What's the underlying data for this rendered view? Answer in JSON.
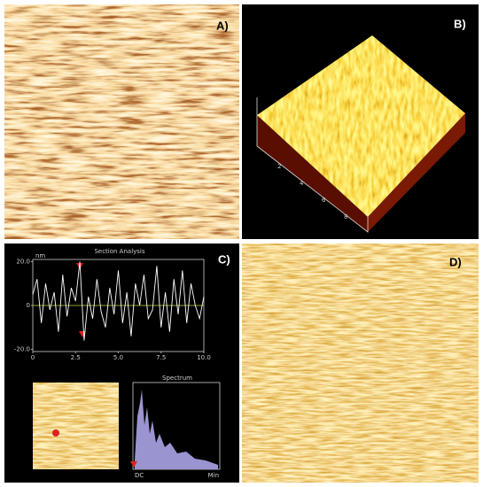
{
  "panels": {
    "a_label": "A)",
    "b_label": "B)",
    "c_label": "C)",
    "d_label": "D)",
    "b_axis_ticks": [
      "2",
      "4",
      "6",
      "8"
    ],
    "spectrum": {
      "title": "Spectrum",
      "left_label": "DC",
      "right_label": "Min"
    }
  },
  "chart_data": {
    "type": "line",
    "title": "Section Analysis",
    "y_label": "nm",
    "x": [
      0,
      0.25,
      0.5,
      0.75,
      1,
      1.25,
      1.5,
      1.75,
      2,
      2.25,
      2.5,
      2.75,
      3,
      3.25,
      3.5,
      3.75,
      4,
      4.25,
      4.5,
      4.75,
      5,
      5.25,
      5.5,
      5.75,
      6,
      6.25,
      6.5,
      6.75,
      7,
      7.25,
      7.5,
      7.75,
      8,
      8.25,
      8.5,
      8.75,
      9,
      9.25,
      9.5,
      9.75,
      10
    ],
    "series": [
      {
        "color": "#ffffff",
        "values": [
          5,
          12,
          -8,
          10,
          -2,
          6,
          -12,
          14,
          -5,
          8,
          2,
          20,
          -16,
          4,
          -6,
          12,
          -3,
          -10,
          8,
          -4,
          16,
          -8,
          6,
          -14,
          10,
          0,
          14,
          -6,
          -2,
          18,
          -10,
          6,
          -12,
          12,
          -4,
          16,
          -8,
          10,
          0,
          -6,
          4
        ]
      }
    ],
    "xlim": [
      0,
      10
    ],
    "ylim": [
      -21,
      21
    ],
    "xticks": [
      0,
      2.5,
      {
        "value": 5,
        "label": "5.0"
      },
      7.5,
      {
        "value": 10,
        "label": "10.0"
      }
    ],
    "yticks": [
      {
        "value": -20,
        "label": "-20.0"
      },
      0,
      {
        "value": 20,
        "label": "20.0"
      }
    ],
    "zero_line_color": "#c8d840"
  }
}
